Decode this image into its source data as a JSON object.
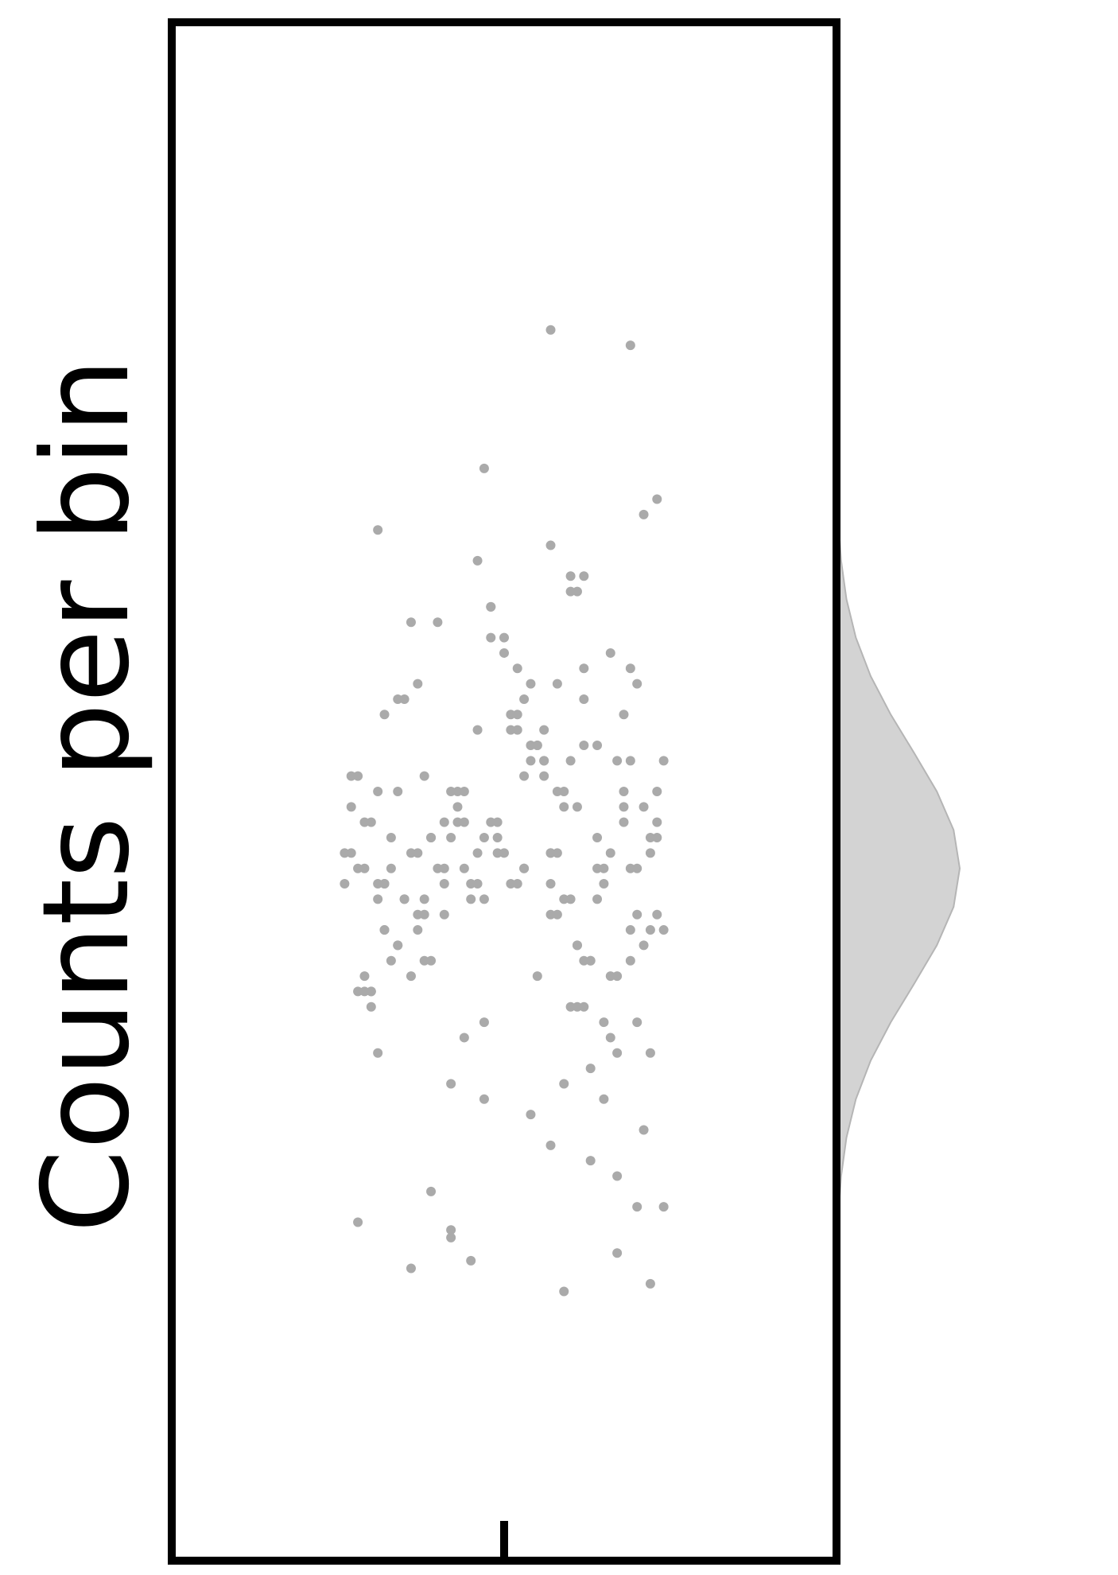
{
  "chart_data": {
    "type": "scatter",
    "ylabel": "Counts per bin",
    "color": "#aaaaaa",
    "xlim": [
      -0.5,
      0.5
    ],
    "xticks": [
      0
    ],
    "ylim": [
      0,
      100
    ],
    "yticks": [],
    "x": [
      -0.21,
      0.05,
      0.17,
      -0.08,
      0.22,
      -0.15,
      0.01,
      0.12,
      -0.23,
      0.09,
      -0.03,
      0.19,
      -0.12,
      0.07,
      -0.19,
      0.14,
      -0.06,
      0.23,
      -0.1,
      0.03,
      0.11,
      -0.17,
      0.02,
      0.2,
      -0.05,
      -0.22,
      0.15,
      -0.01,
      0.08,
      -0.13,
      0.18,
      -0.2,
      0.04,
      -0.09,
      0.21,
      -0.16,
      0.1,
      -0.02,
      0.13,
      -0.24,
      -0.07,
      0.16,
      -0.18,
      0.06,
      0.24,
      -0.11,
      0.0,
      -0.14,
      0.19,
      -0.04,
      0.09,
      -0.21,
      0.14,
      0.03,
      -0.16,
      0.22,
      -0.08,
      0.11,
      -0.19,
      0.05,
      0.2,
      -0.02,
      -0.13,
      0.12,
      -0.23,
      0.07,
      0.17,
      -0.09,
      0.01,
      -0.18,
      0.23,
      0.04,
      -0.06,
      0.15,
      -0.2,
      0.08,
      -0.12,
      0.18,
      -0.03,
      0.1,
      -0.14,
      0.21,
      0.06,
      -0.19,
      0.13,
      -0.01,
      -0.22,
      0.1,
      0.16,
      -0.07,
      0.02,
      -0.16,
      0.19,
      -0.11,
      0.07,
      0.24,
      -0.04,
      -0.17,
      0.12,
      -0.09,
      0.03,
      -0.2,
      0.14,
      0.09,
      -0.12,
      0.18,
      -0.06,
      0.22,
      -0.15,
      0.0,
      0.11,
      -0.23,
      0.05,
      0.17,
      -0.02,
      -0.18,
      0.13,
      0.06,
      -0.1,
      0.2,
      -0.05,
      0.08,
      -0.21,
      0.16,
      0.01,
      -0.13,
      0.23,
      -0.08,
      0.12,
      -0.17,
      0.19,
      0.04,
      -0.24,
      0.1,
      -0.03,
      0.15,
      -0.19,
      0.07,
      0.21,
      -0.11,
      0.14,
      -0.09,
      0.02,
      -0.16,
      0.2,
      0.06,
      -0.22,
      0.11,
      -0.04,
      0.17,
      -0.12,
      0.0,
      0.22,
      -0.18,
      0.09,
      -0.07,
      0.13,
      -0.14,
      0.03,
      0.18,
      -0.18,
      0.12,
      0.07,
      -0.03,
      -0.2,
      0.15,
      0.04,
      -0.11,
      0.23,
      -0.06,
      0.1,
      0.19,
      -0.15,
      -0.01,
      0.16,
      -0.21,
      0.08,
      0.02,
      -0.13,
      0.24,
      0.07,
      0.19,
      -0.03,
      0.21,
      0.07,
      -0.04,
      0.11,
      -0.19,
      -0.08,
      -0.14,
      0.22,
      -0.22,
      0.17,
      -0.05,
      0.09,
      0.12,
      -0.02,
      0.2,
      -0.08,
      0.23
    ],
    "values": [
      45,
      38,
      52,
      47,
      41,
      56,
      44,
      36,
      49,
      50,
      43,
      58,
      39,
      46,
      33,
      53,
      48,
      42,
      61,
      45,
      40,
      47,
      55,
      35,
      44,
      51,
      30,
      46,
      42,
      57,
      48,
      37,
      53,
      45,
      28,
      50,
      43,
      62,
      39,
      46,
      49,
      34,
      44,
      52,
      41,
      47,
      59,
      38,
      45,
      54,
      31,
      48,
      43,
      56,
      40,
      46,
      50,
      36,
      44,
      53,
      42,
      60,
      46,
      39,
      51,
      44,
      33,
      48,
      55,
      41,
      47,
      29,
      50,
      45,
      37,
      57,
      43,
      49,
      35,
      52,
      46,
      40,
      54,
      43,
      32,
      48,
      45,
      63,
      38,
      50,
      44,
      56,
      41,
      47,
      27,
      52,
      46,
      39,
      58,
      44,
      51,
      36,
      45,
      49,
      42,
      55,
      34,
      47,
      43,
      60,
      40,
      46,
      53,
      38,
      48,
      44,
      26,
      51,
      45,
      57,
      43,
      50,
      37,
      46,
      54,
      41,
      48,
      31,
      56,
      45,
      39,
      52,
      44,
      64,
      47,
      35,
      50,
      42,
      49,
      24,
      47,
      42,
      58,
      40,
      45,
      52,
      37,
      49,
      44,
      25,
      51,
      46,
      33,
      55,
      43,
      48,
      39,
      61,
      45,
      50,
      41,
      53,
      46,
      30,
      48,
      44,
      57,
      39,
      50,
      45,
      36,
      52,
      43,
      47,
      59,
      38,
      46,
      54,
      42,
      23,
      80,
      79,
      71,
      68,
      66,
      65,
      63,
      67,
      21,
      19,
      18,
      22,
      20,
      19.5,
      17.5,
      64,
      62,
      23,
      21.5,
      69
    ],
    "density": {
      "color": "#d3d3d3",
      "y": [
        20,
        22.5,
        25,
        27.5,
        30,
        32.5,
        35,
        37.5,
        40,
        42.5,
        45,
        47.5,
        50,
        52.5,
        55,
        57.5,
        60,
        62.5,
        65,
        67.5,
        70
      ],
      "values": [
        0.0059,
        0.0156,
        0.0374,
        0.0807,
        0.157,
        0.277,
        0.44,
        0.63,
        0.814,
        0.95,
        1,
        0.95,
        0.814,
        0.63,
        0.44,
        0.277,
        0.157,
        0.0807,
        0.0374,
        0.0156,
        0.0059
      ]
    }
  }
}
